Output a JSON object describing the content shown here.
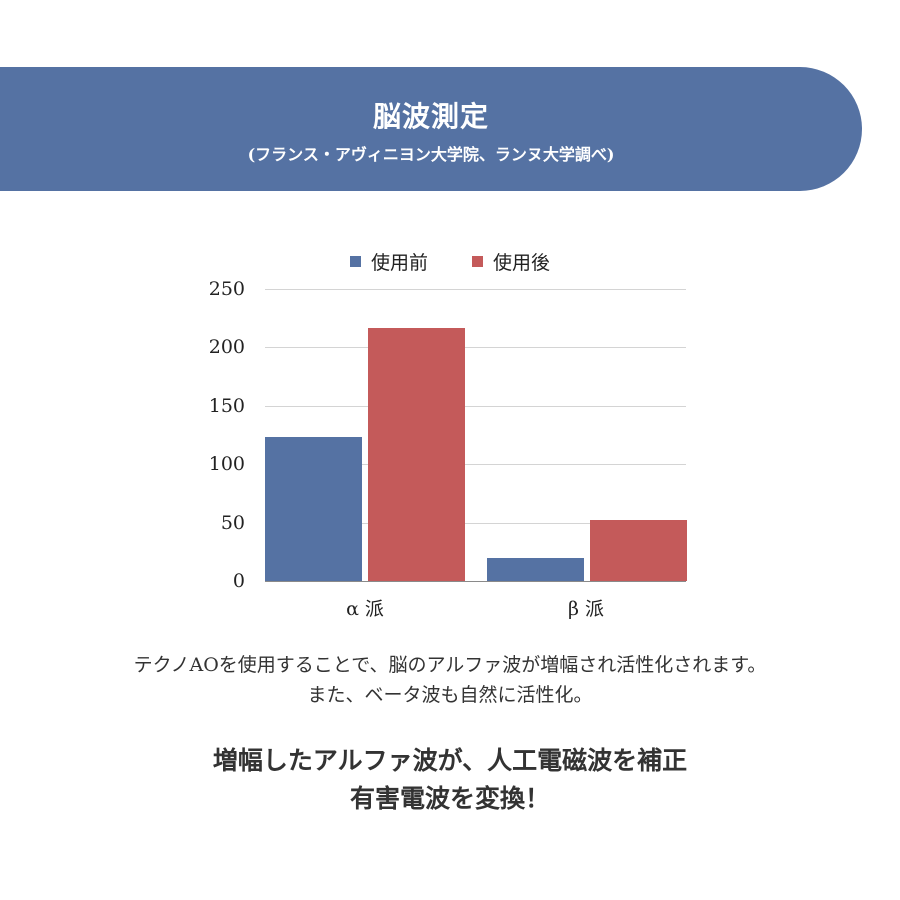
{
  "banner": {
    "title": "脳波測定",
    "subtitle": "(フランス・アヴィニヨン大学院、ランヌ大学調べ)",
    "color": "#5572a3"
  },
  "chart_data": {
    "type": "bar",
    "title": "脳波測定",
    "categories": [
      "α派",
      "β派"
    ],
    "series": [
      {
        "name": "使用前",
        "values": [
          123,
          20
        ],
        "color": "#5572a3"
      },
      {
        "name": "使用後",
        "values": [
          217,
          52
        ],
        "color": "#c45a5a"
      }
    ],
    "xlabel": "",
    "ylabel": "",
    "ylim": [
      0,
      250
    ],
    "yticks": [
      "250",
      "200",
      "150",
      "100",
      "50",
      "0"
    ],
    "grid": true,
    "legend_position": "top"
  },
  "legend": [
    {
      "label": "使用前"
    },
    {
      "label": "使用後"
    }
  ],
  "xlabels": [
    "α 派",
    "β 派"
  ],
  "body": {
    "line1": "テクノAOを使用することで、脳のアルファ波が増幅され活性化されます。",
    "line2": "また、ベータ波も自然に活性化。",
    "headline1": "増幅したアルファ波が、人工電磁波を補正",
    "headline2": "有害電波を変換！"
  }
}
